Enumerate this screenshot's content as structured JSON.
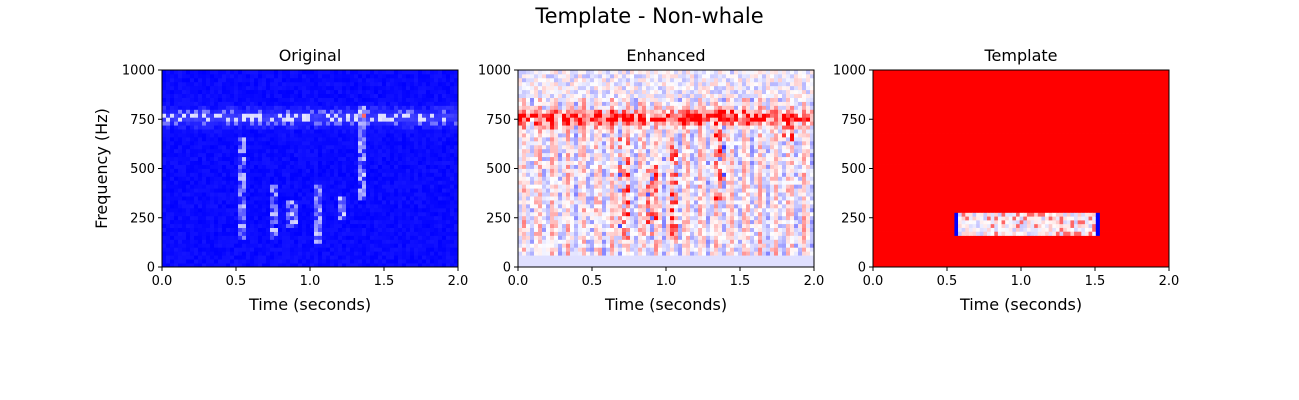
{
  "figure": {
    "suptitle": "Template - Non-whale"
  },
  "chart_data": [
    {
      "type": "heatmap",
      "title": "Original",
      "xlabel": "Time (seconds)",
      "ylabel": "Frequency (Hz)",
      "xlim": [
        0.0,
        2.0
      ],
      "ylim": [
        0,
        1000
      ],
      "xticks": [
        "0.0",
        "0.5",
        "1.0",
        "1.5",
        "2.0"
      ],
      "yticks": [
        "0",
        "250",
        "500",
        "750",
        "1000"
      ],
      "colormap": "bwr",
      "background_color": "#0000ff",
      "features": [
        {
          "kind": "band",
          "y": 760,
          "y_span": 50,
          "note": "bright spots"
        },
        {
          "kind": "column",
          "x": 0.55,
          "y_range": [
            150,
            650
          ]
        },
        {
          "kind": "column",
          "x": 0.75,
          "y_range": [
            150,
            420
          ]
        },
        {
          "kind": "column",
          "x": 0.88,
          "y_range": [
            200,
            330
          ]
        },
        {
          "kind": "column",
          "x": 1.05,
          "y_range": [
            130,
            420
          ]
        },
        {
          "kind": "column",
          "x": 1.22,
          "y_range": [
            250,
            350
          ]
        },
        {
          "kind": "column",
          "x": 1.36,
          "y_range": [
            350,
            820
          ]
        }
      ]
    },
    {
      "type": "heatmap",
      "title": "Enhanced",
      "xlabel": "Time (seconds)",
      "xlim": [
        0.0,
        2.0
      ],
      "ylim": [
        0,
        1000
      ],
      "xticks": [
        "0.0",
        "0.5",
        "1.0",
        "1.5",
        "2.0"
      ],
      "yticks": [
        "0",
        "250",
        "500",
        "750",
        "1000"
      ],
      "colormap": "bwr",
      "features": [
        {
          "kind": "band",
          "y": 760,
          "y_span": 50,
          "note": "strong red energy"
        },
        {
          "kind": "column",
          "x": 0.2,
          "y_range": [
            700,
            790
          ]
        },
        {
          "kind": "column",
          "x": 0.72,
          "y_range": [
            120,
            650
          ]
        },
        {
          "kind": "column",
          "x": 0.9,
          "y_range": [
            150,
            520
          ]
        },
        {
          "kind": "column",
          "x": 1.05,
          "y_range": [
            120,
            620
          ]
        },
        {
          "kind": "column",
          "x": 1.36,
          "y_range": [
            350,
            820
          ]
        },
        {
          "kind": "column",
          "x": 1.82,
          "y_range": [
            650,
            800
          ]
        }
      ]
    },
    {
      "type": "heatmap",
      "title": "Template",
      "xlabel": "Time (seconds)",
      "xlim": [
        0.0,
        2.0
      ],
      "ylim": [
        0,
        1000
      ],
      "xticks": [
        "0.0",
        "0.5",
        "1.0",
        "1.5",
        "2.0"
      ],
      "yticks": [
        "0",
        "250",
        "500",
        "750",
        "1000"
      ],
      "colormap": "bwr",
      "background_color": "#ff0000",
      "template_box": {
        "x_range": [
          0.55,
          1.53
        ],
        "y_range": [
          160,
          275
        ]
      }
    }
  ]
}
